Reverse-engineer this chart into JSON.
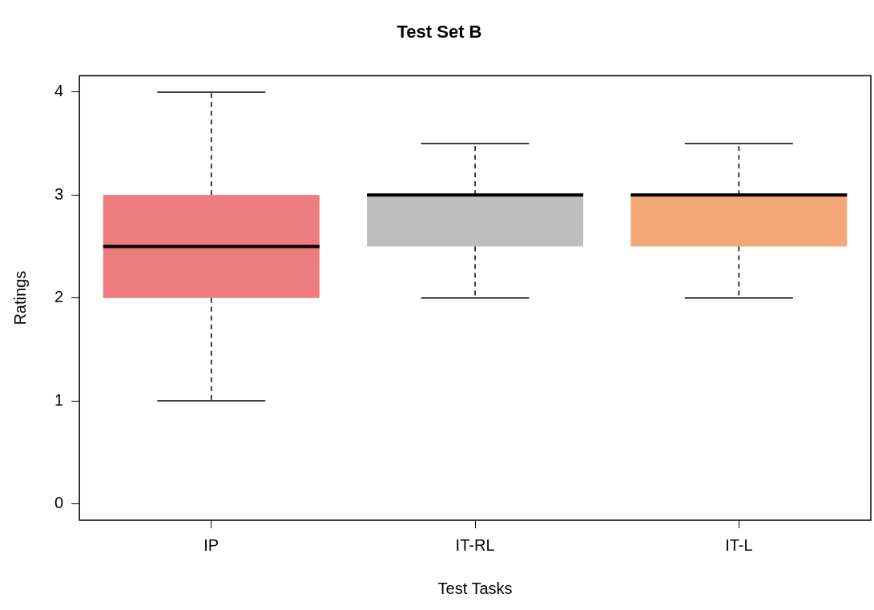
{
  "chart_data": {
    "type": "box",
    "title": "Test Set B",
    "xlabel": "Test Tasks",
    "ylabel": "Ratings",
    "categories": [
      "IP",
      "IT-RL",
      "IT-L"
    ],
    "boxes": [
      {
        "low": 1,
        "q1": 2,
        "median": 2.5,
        "q3": 3,
        "high": 4
      },
      {
        "low": 2,
        "q1": 2.5,
        "median": 3,
        "q3": 3,
        "high": 3.5
      },
      {
        "low": 2,
        "q1": 2.5,
        "median": 3,
        "q3": 3,
        "high": 3.5
      }
    ],
    "colors": [
      "#ee7b7e",
      "#bebebe",
      "#f4a87a"
    ],
    "ylim": [
      -0.16,
      4.16
    ],
    "yticks": [
      0,
      1,
      2,
      3,
      4
    ],
    "grid": false,
    "legend": false
  }
}
